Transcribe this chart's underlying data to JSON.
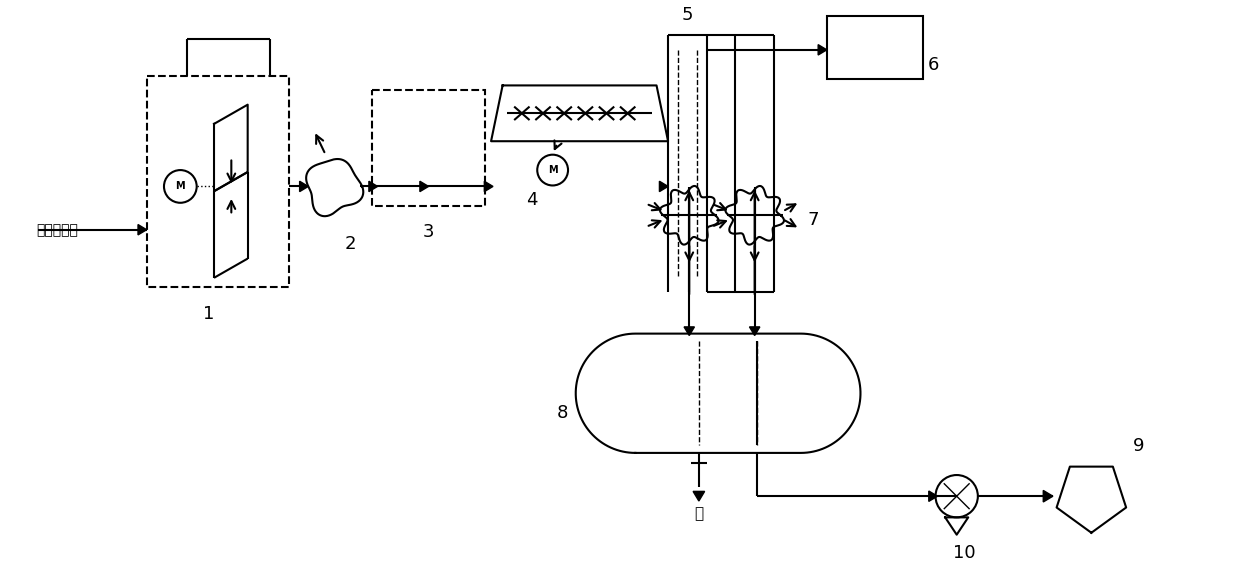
{
  "bg_color": "#ffffff",
  "line_color": "#000000",
  "labels": {
    "input_label": "粗氯乙烯气",
    "water_label": "水",
    "num1": "1",
    "num2": "2",
    "num3": "3",
    "num4": "4",
    "num5": "5",
    "num6": "6",
    "num7": "7",
    "num8": "8",
    "num9": "9",
    "num10": "10"
  },
  "figsize": [
    12.39,
    5.67
  ],
  "dpi": 100
}
